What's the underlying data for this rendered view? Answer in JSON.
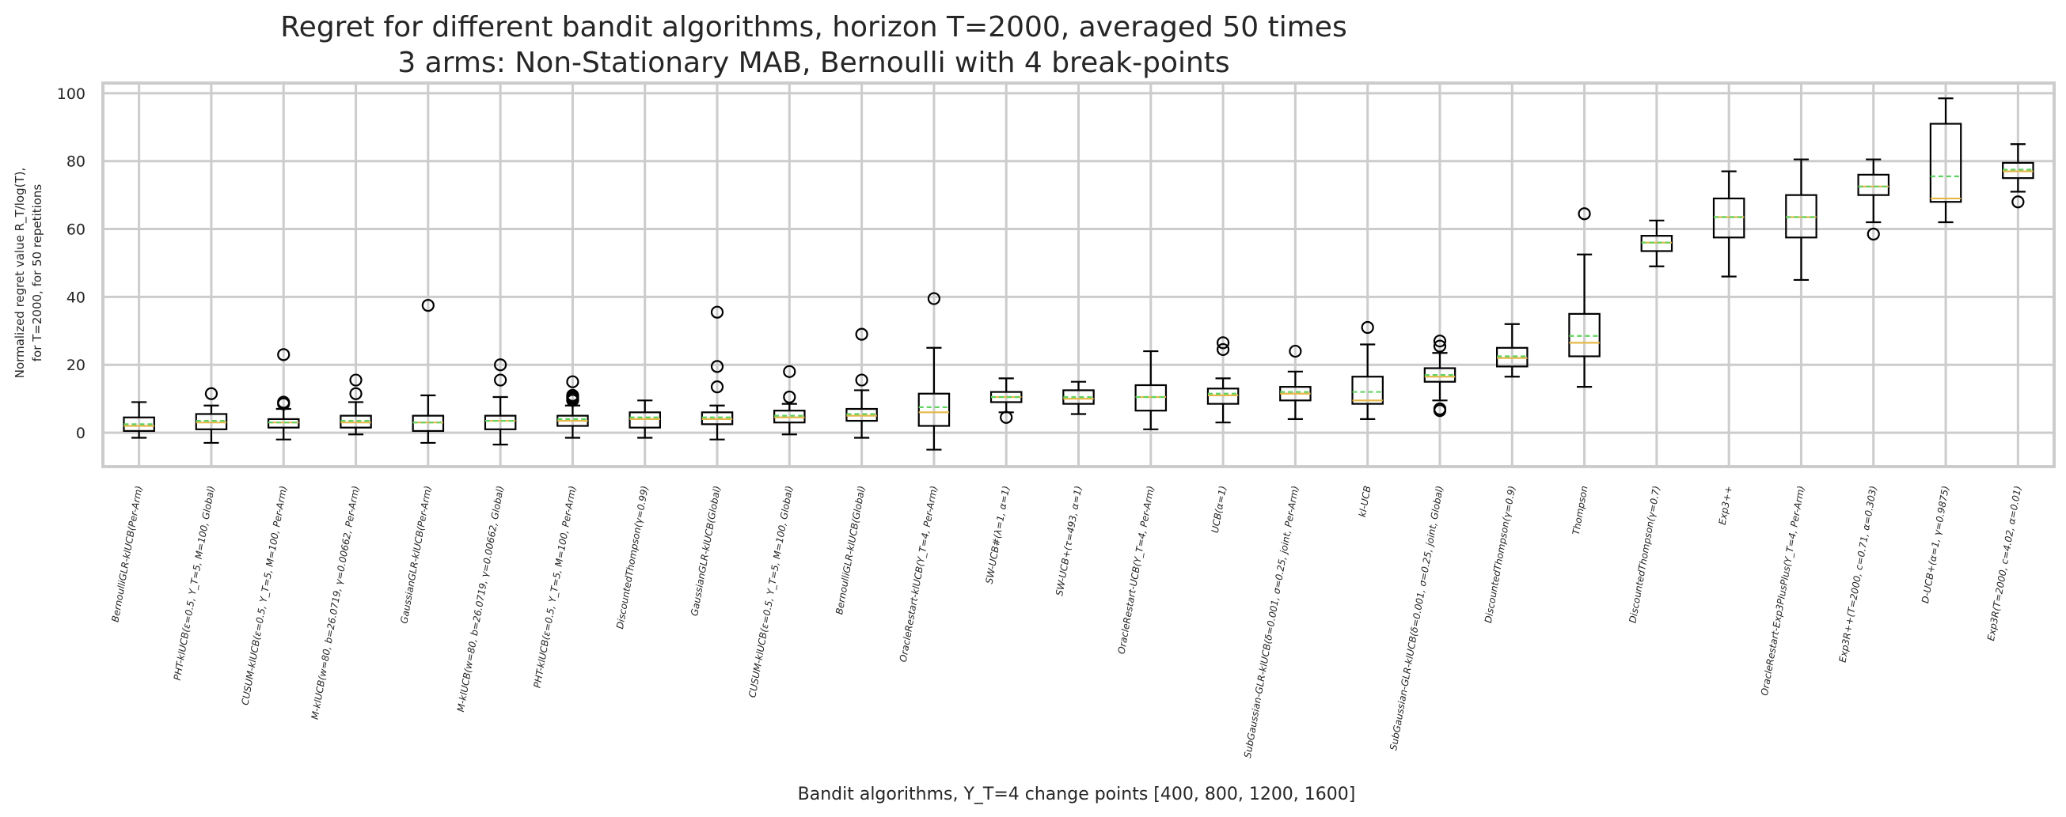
{
  "chart_data": {
    "type": "box",
    "title_line1": "Regret for different bandit algorithms, horizon T=2000, averaged 50 times",
    "title_line2": "3 arms: Non-Stationary MAB, Bernoulli with 4 break-points",
    "ylabel_line1": "Normalized regret value R_T/log(T),",
    "ylabel_line2": "for T=2000, for 50 repetitions",
    "xlabel": "Bandit algorithms, Υ_T=4 change points [400, 800, 1200, 1600]",
    "ylim": [
      -10,
      103
    ],
    "yticks": [
      0,
      20,
      40,
      60,
      80,
      100
    ],
    "grid": true,
    "colors": {
      "box": "#000000",
      "median": "#e6b84a",
      "mean": "#5fd35f",
      "grid": "#cccccc",
      "spine": "#cccccc"
    },
    "boxes": [
      {
        "label": "BernoulliGLR-klUCB(Per-Arm)",
        "whislo": -1.5,
        "q1": 0.5,
        "med": 2,
        "mean": 2.5,
        "q3": 4.5,
        "whishi": 9,
        "fliers": []
      },
      {
        "label": "PHT-klUCB(ε=0.5, Υ_T=5, M=100, Global)",
        "whislo": -3,
        "q1": 1,
        "med": 3,
        "mean": 3.5,
        "q3": 5.5,
        "whishi": 8,
        "fliers": [
          11.5
        ]
      },
      {
        "label": "CUSUM-klUCB(ε=0.5, Υ_T=5, M=100, Per-Arm)",
        "whislo": -2,
        "q1": 1.5,
        "med": 3,
        "mean": 3,
        "q3": 4,
        "whishi": 7,
        "fliers": [
          8.5,
          9,
          23
        ]
      },
      {
        "label": "M-klUCB(w=80, b=26.0719, γ=0.00662, Per-Arm)",
        "whislo": -0.5,
        "q1": 1.5,
        "med": 3,
        "mean": 3.5,
        "q3": 5,
        "whishi": 9,
        "fliers": [
          11.5,
          15.5
        ]
      },
      {
        "label": "GaussianGLR-klUCB(Per-Arm)",
        "whislo": -3,
        "q1": 0.5,
        "med": 3,
        "mean": 3,
        "q3": 5,
        "whishi": 11,
        "fliers": [
          37.5
        ]
      },
      {
        "label": "M-klUCB(w=80, b=26.0719, γ=0.00662, Global)",
        "whislo": -3.5,
        "q1": 1,
        "med": 3.5,
        "mean": 3.5,
        "q3": 5,
        "whishi": 10.5,
        "fliers": [
          15.5,
          20
        ]
      },
      {
        "label": "PHT-klUCB(ε=0.5, Υ_T=5, M=100, Per-Arm)",
        "whislo": -1.5,
        "q1": 2,
        "med": 3.5,
        "mean": 4,
        "q3": 5,
        "whishi": 8,
        "fliers": [
          9.5,
          10,
          10.5,
          11,
          15
        ]
      },
      {
        "label": "DiscountedThompson(γ=0.99)",
        "whislo": -1.5,
        "q1": 1.5,
        "med": 4,
        "mean": 4.5,
        "q3": 6,
        "whishi": 9.5,
        "fliers": []
      },
      {
        "label": "GaussianGLR-klUCB(Global)",
        "whislo": -2,
        "q1": 2.5,
        "med": 4,
        "mean": 4.5,
        "q3": 6,
        "whishi": 8,
        "fliers": [
          13.5,
          19.5,
          35.5
        ]
      },
      {
        "label": "CUSUM-klUCB(ε=0.5, Υ_T=5, M=100, Global)",
        "whislo": -0.5,
        "q1": 3,
        "med": 4.5,
        "mean": 5,
        "q3": 6.5,
        "whishi": 8.5,
        "fliers": [
          10.5,
          18
        ]
      },
      {
        "label": "BernoulliGLR-klUCB(Global)",
        "whislo": -1.5,
        "q1": 3.5,
        "med": 5,
        "mean": 5.5,
        "q3": 7,
        "whishi": 12.5,
        "fliers": [
          15.5,
          29
        ]
      },
      {
        "label": "OracleRestart-klUCB(Υ_T=4, Per-Arm)",
        "whislo": -5,
        "q1": 2,
        "med": 6,
        "mean": 7.5,
        "q3": 11.5,
        "whishi": 25,
        "fliers": [
          39.5
        ]
      },
      {
        "label": "SW-UCB#(λ=1, α=1)",
        "whislo": 6,
        "q1": 9,
        "med": 10.5,
        "mean": 10.5,
        "q3": 12,
        "whishi": 16,
        "fliers": [
          4.5
        ]
      },
      {
        "label": "SW-UCB+(τ=493, α=1)",
        "whislo": 5.5,
        "q1": 8.5,
        "med": 10,
        "mean": 10.5,
        "q3": 12.5,
        "whishi": 15,
        "fliers": []
      },
      {
        "label": "OracleRestart-UCB(Υ_T=4, Per-Arm)",
        "whislo": 1,
        "q1": 6.5,
        "med": 10.5,
        "mean": 10.5,
        "q3": 14,
        "whishi": 24,
        "fliers": []
      },
      {
        "label": "UCB(α=1)",
        "whislo": 3,
        "q1": 8.5,
        "med": 11,
        "mean": 11.5,
        "q3": 13,
        "whishi": 16,
        "fliers": [
          24.5,
          26.5
        ]
      },
      {
        "label": "SubGaussian-GLR-klUCB(δ=0.001, σ=0.25, joint, Per-Arm)",
        "whislo": 4,
        "q1": 9.5,
        "med": 11.5,
        "mean": 12,
        "q3": 13.5,
        "whishi": 18,
        "fliers": [
          24
        ]
      },
      {
        "label": "kl-UCB",
        "whislo": 4,
        "q1": 8.5,
        "med": 9.5,
        "mean": 12,
        "q3": 16.5,
        "whishi": 26,
        "fliers": [
          31
        ]
      },
      {
        "label": "SubGaussian-GLR-klUCB(δ=0.001, σ=0.25, joint, Global)",
        "whislo": 9.5,
        "q1": 15,
        "med": 16.5,
        "mean": 17,
        "q3": 19,
        "whishi": 23.5,
        "fliers": [
          6.5,
          7,
          25.5,
          27
        ]
      },
      {
        "label": "DiscountedThompson(γ=0.9)",
        "whislo": 16.5,
        "q1": 19.5,
        "med": 22,
        "mean": 22.5,
        "q3": 25,
        "whishi": 32,
        "fliers": []
      },
      {
        "label": "Thompson",
        "whislo": 13.5,
        "q1": 22.5,
        "med": 26.5,
        "mean": 28.5,
        "q3": 35,
        "whishi": 52.5,
        "fliers": [
          64.5
        ]
      },
      {
        "label": "DiscountedThompson(γ=0.7)",
        "whislo": 49,
        "q1": 53.5,
        "med": 56,
        "mean": 56,
        "q3": 58,
        "whishi": 62.5,
        "fliers": []
      },
      {
        "label": "Exp3++",
        "whislo": 46,
        "q1": 57.5,
        "med": 63.5,
        "mean": 63.5,
        "q3": 69,
        "whishi": 77,
        "fliers": []
      },
      {
        "label": "OracleRestart-Exp3PlusPlus(Υ_T=4, Per-Arm)",
        "whislo": 45,
        "q1": 57.5,
        "med": 63.5,
        "mean": 63.5,
        "q3": 70,
        "whishi": 80.5,
        "fliers": []
      },
      {
        "label": "Exp3R++(T=2000, c=0.71, α=0.303)",
        "whislo": 62,
        "q1": 70,
        "med": 72.5,
        "mean": 72.5,
        "q3": 76,
        "whishi": 80.5,
        "fliers": [
          58.5
        ]
      },
      {
        "label": "D-UCB+(α=1, γ=0.9875)",
        "whislo": 62,
        "q1": 68,
        "med": 69,
        "mean": 75.5,
        "q3": 91,
        "whishi": 98.5,
        "fliers": []
      },
      {
        "label": "Exp3R(T=2000, c=4.02, α=0.01)",
        "whislo": 71,
        "q1": 75,
        "med": 77,
        "mean": 77.5,
        "q3": 79.5,
        "whishi": 85,
        "fliers": [
          68
        ]
      }
    ]
  }
}
